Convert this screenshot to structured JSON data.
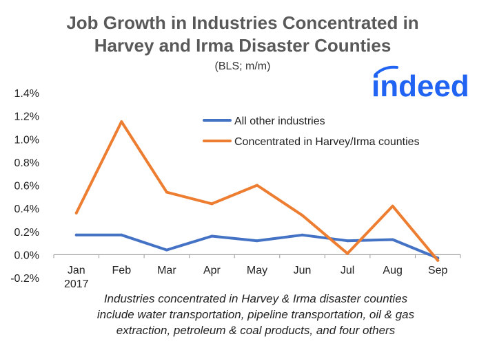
{
  "chart_data": {
    "type": "line",
    "title_lines": [
      "Job Growth in Industries Concentrated in",
      "Harvey and Irma Disaster Counties"
    ],
    "subtitle": "(BLS; m/m)",
    "categories": [
      "Jan\n2017",
      "Feb",
      "Mar",
      "Apr",
      "May",
      "Jun",
      "Jul",
      "Aug",
      "Sep"
    ],
    "y_ticks": [
      "1.4%",
      "1.2%",
      "1.0%",
      "0.8%",
      "0.6%",
      "0.4%",
      "0.2%",
      "0.0%",
      "-0.2%"
    ],
    "ylim": [
      -0.2,
      1.4
    ],
    "y_unit": "%",
    "grid": false,
    "legend_position": "top-right",
    "series": [
      {
        "name": "All other industries",
        "color": "#4472C4",
        "values": [
          0.17,
          0.17,
          0.04,
          0.16,
          0.12,
          0.17,
          0.12,
          0.13,
          -0.03
        ]
      },
      {
        "name": "Concentrated in Harvey/Irma counties",
        "color": "#ED7D31",
        "values": [
          0.36,
          1.15,
          0.54,
          0.44,
          0.6,
          0.34,
          0.01,
          0.42,
          -0.05
        ]
      }
    ]
  },
  "note_lines": [
    "Industries concentrated in Harvey & Irma disaster counties",
    "include water transportation, pipeline transportation, oil & gas",
    "extraction, petroleum & coal products, and four others"
  ],
  "brand": {
    "text": "indeed",
    "color": "#2164F3"
  }
}
